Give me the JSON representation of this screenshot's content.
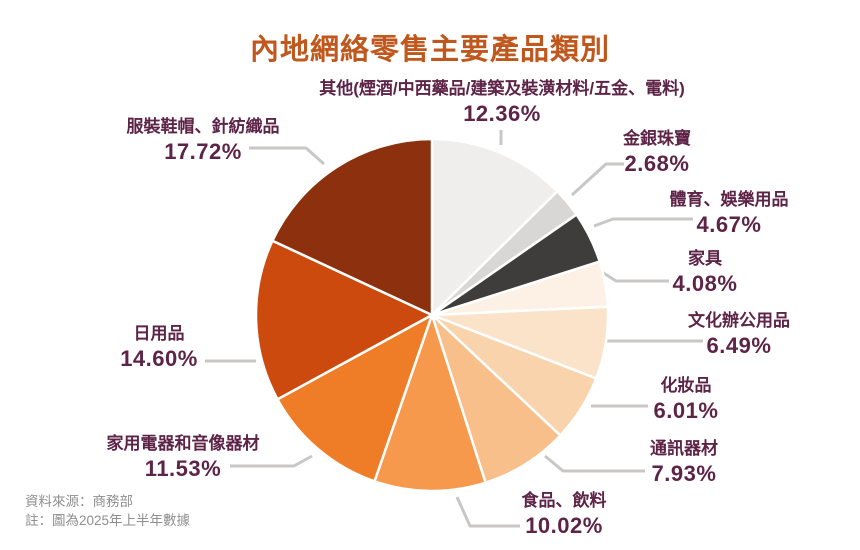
{
  "title": "內地網絡零售主要產品類別",
  "footer": {
    "source": "資料來源：商務部",
    "note": "註：圖為2025年上半年數據"
  },
  "colors": {
    "background": "#FFFFFF",
    "title": "#C0571C",
    "label": "#5E2448",
    "leader_line": "#C8C7C5",
    "footer_text": "#8E8E8E",
    "slice_stroke": "#FFFFFF"
  },
  "chart_data": {
    "type": "pie",
    "title": "內地網絡零售主要產品類別",
    "legend": "none",
    "start_angle_deg": -90,
    "direction": "clockwise",
    "slices": [
      {
        "name": "其他(煙酒/中西藥品/建築及裝潢材料/五金、電料)",
        "value": 12.36,
        "pct": "12.36%",
        "color": "#EFEEEC"
      },
      {
        "name": "金銀珠寶",
        "value": 2.68,
        "pct": "2.68%",
        "color": "#D8D7D5"
      },
      {
        "name": "體育、娛樂用品",
        "value": 4.67,
        "pct": "4.67%",
        "color": "#3E3D3C"
      },
      {
        "name": "家具",
        "value": 4.08,
        "pct": "4.08%",
        "color": "#FCF1E4"
      },
      {
        "name": "文化辦公用品",
        "value": 6.49,
        "pct": "6.49%",
        "color": "#FAE3C8"
      },
      {
        "name": "化妝品",
        "value": 6.01,
        "pct": "6.01%",
        "color": "#F9D3AB"
      },
      {
        "name": "通訊器材",
        "value": 7.93,
        "pct": "7.93%",
        "color": "#F8BF8B"
      },
      {
        "name": "食品、飲料",
        "value": 10.02,
        "pct": "10.02%",
        "color": "#F7994D"
      },
      {
        "name": "家用電器和音像器材",
        "value": 11.53,
        "pct": "11.53%",
        "color": "#EF7C26"
      },
      {
        "name": "日用品",
        "value": 14.6,
        "pct": "14.60%",
        "color": "#CD4A0F"
      },
      {
        "name": "服裝鞋帽、針紡織品",
        "value": 17.72,
        "pct": "17.72%",
        "color": "#8C300D"
      }
    ]
  }
}
